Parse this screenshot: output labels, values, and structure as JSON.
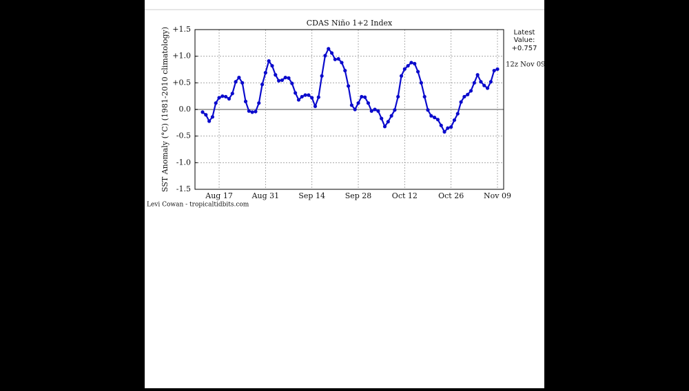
{
  "chart_data": {
    "type": "line",
    "title": "CDAS Niño 1+2 Index",
    "y_label": "SST Anomaly (°C) (1981-2010 climatology)",
    "annotations": [
      "Latest",
      "Value:",
      "+0.757",
      "12z Nov 09"
    ],
    "credit": "Levi Cowan - tropicaltidbits.com",
    "categories": [
      null,
      null,
      null,
      null,
      null,
      "Aug 17",
      null,
      null,
      null,
      null,
      null,
      null,
      null,
      null,
      null,
      null,
      null,
      null,
      null,
      "Aug 31",
      null,
      null,
      null,
      null,
      null,
      null,
      null,
      null,
      null,
      null,
      null,
      null,
      null,
      "Sep 14",
      null,
      null,
      null,
      null,
      null,
      null,
      null,
      null,
      null,
      null,
      null,
      null,
      null,
      "Sep 28",
      null,
      null,
      null,
      null,
      null,
      null,
      null,
      null,
      null,
      null,
      null,
      null,
      null,
      "Oct 12",
      null,
      null,
      null,
      null,
      null,
      null,
      null,
      null,
      null,
      null,
      null,
      null,
      null,
      "Oct 26",
      null,
      null,
      null,
      null,
      null,
      null,
      null,
      null,
      null,
      null,
      null,
      null,
      null,
      "Nov 09"
    ],
    "series": [
      {
        "name": "Niño 1+2",
        "color": "#0b0bcc",
        "values": [
          -0.05,
          -0.1,
          -0.22,
          -0.14,
          0.12,
          0.22,
          0.25,
          0.24,
          0.2,
          0.3,
          0.52,
          0.6,
          0.5,
          0.15,
          -0.03,
          -0.05,
          -0.04,
          0.12,
          0.47,
          0.69,
          0.91,
          0.82,
          0.65,
          0.54,
          0.55,
          0.6,
          0.59,
          0.49,
          0.31,
          0.18,
          0.24,
          0.27,
          0.27,
          0.22,
          0.06,
          0.23,
          0.63,
          1.01,
          1.14,
          1.06,
          0.94,
          0.95,
          0.88,
          0.73,
          0.44,
          0.08,
          0.0,
          0.12,
          0.24,
          0.23,
          0.12,
          -0.03,
          0.0,
          -0.03,
          -0.17,
          -0.32,
          -0.23,
          -0.12,
          -0.01,
          0.24,
          0.63,
          0.76,
          0.82,
          0.88,
          0.86,
          0.71,
          0.5,
          0.24,
          -0.01,
          -0.12,
          -0.15,
          -0.19,
          -0.3,
          -0.42,
          -0.35,
          -0.33,
          -0.2,
          -0.08,
          0.14,
          0.24,
          0.28,
          0.35,
          0.5,
          0.65,
          0.52,
          0.45,
          0.4,
          0.52,
          0.73,
          0.757
        ]
      }
    ],
    "ylim": [
      -1.5,
      1.5
    ],
    "yticks": [
      {
        "value": 1.5,
        "label": "+1.5"
      },
      {
        "value": 1.0,
        "label": "+1.0"
      },
      {
        "value": 0.5,
        "label": "+0.5"
      },
      {
        "value": 0,
        "label": "0.0"
      },
      -0.5,
      {
        "value": -1.0,
        "label": "-1.0"
      },
      -1.5
    ],
    "grid": true
  }
}
